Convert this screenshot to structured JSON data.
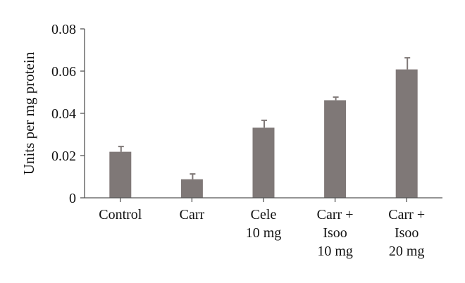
{
  "chart_data": {
    "type": "bar",
    "categories": [
      [
        "Control"
      ],
      [
        "Carr"
      ],
      [
        "Cele",
        "10 mg"
      ],
      [
        "Carr +",
        "Isoo",
        "10 mg"
      ],
      [
        "Carr +",
        "Isoo",
        "20 mg"
      ]
    ],
    "values": [
      0.0218,
      0.0088,
      0.0332,
      0.0462,
      0.0608
    ],
    "errors": [
      0.0025,
      0.0025,
      0.0035,
      0.0015,
      0.0055
    ],
    "title": "",
    "xlabel": "",
    "ylabel": "Units per mg protein",
    "ylim": [
      0,
      0.08
    ],
    "yticks": [
      "0",
      "0.02",
      "0.04",
      "0.06",
      "0.08"
    ],
    "bar_color": "#7f7877",
    "grid": false
  }
}
